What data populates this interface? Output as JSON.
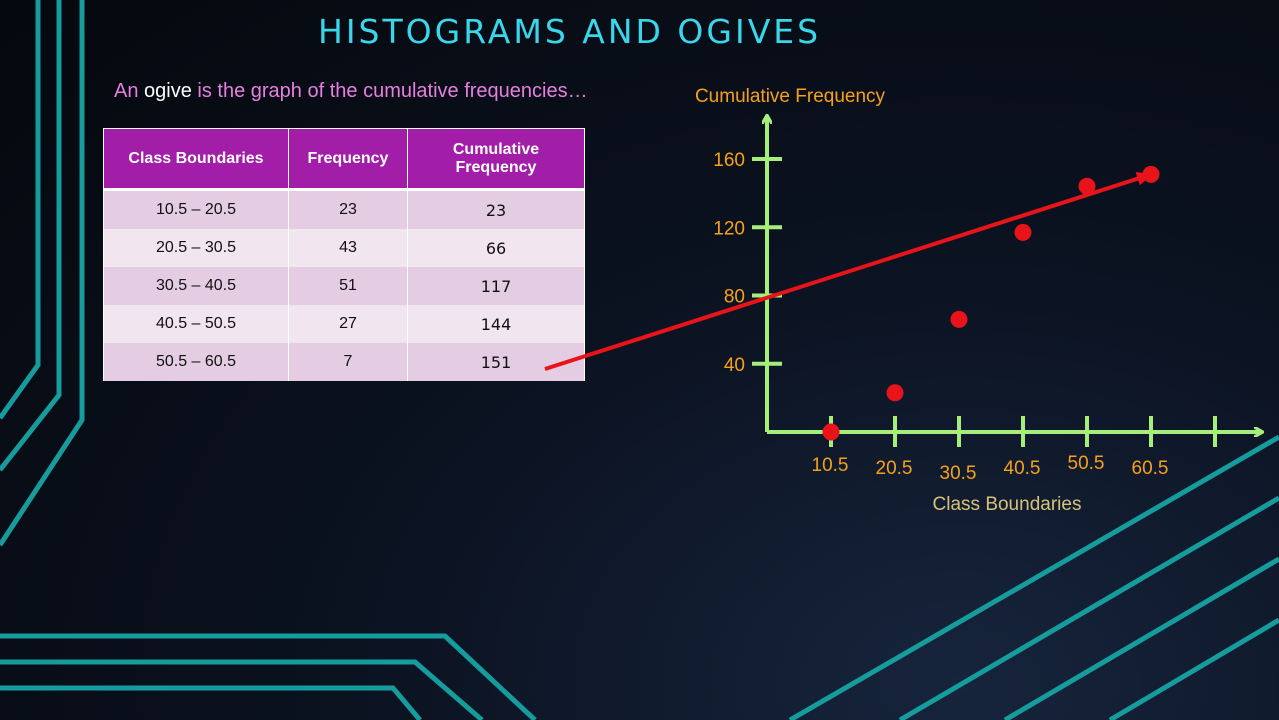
{
  "slide": {
    "title": "HISTOGRAMS AND OGIVES",
    "subtitle_prefix": "An ",
    "subtitle_keyword": "ogive",
    "subtitle_suffix": " is the graph of the cumulative frequencies…"
  },
  "table": {
    "headers": [
      "Class Boundaries",
      "Frequency",
      "Cumulative Frequency"
    ],
    "rows": [
      [
        "10.5 – 20.5",
        "23",
        "23"
      ],
      [
        "20.5 – 30.5",
        "43",
        "66"
      ],
      [
        "30.5 – 40.5",
        "51",
        "117"
      ],
      [
        "40.5 – 50.5",
        "27",
        "144"
      ],
      [
        "50.5 – 60.5",
        "7",
        "151"
      ]
    ]
  },
  "chart_data": {
    "type": "scatter",
    "ylabel": "Cumulative Frequency",
    "xlabel": "Class Boundaries",
    "x_tick_labels": [
      "10.5",
      "20.5",
      "30.5",
      "40.5",
      "50.5",
      "60.5"
    ],
    "y_tick_labels": [
      "40",
      "80",
      "120",
      "160"
    ],
    "y_ticks": [
      40,
      80,
      120,
      160
    ],
    "x": [
      10.5,
      20.5,
      30.5,
      40.5,
      50.5,
      60.5
    ],
    "y": [
      0,
      23,
      66,
      117,
      144,
      151
    ],
    "grid": false,
    "annotation": "red arrow from the 151 cumulative frequency cell to the last plotted point",
    "colors": {
      "axes": "#a6ee7c",
      "tick_labels": "#f7a11a",
      "points": "#e8141a",
      "arrow": "#e8141a"
    }
  }
}
